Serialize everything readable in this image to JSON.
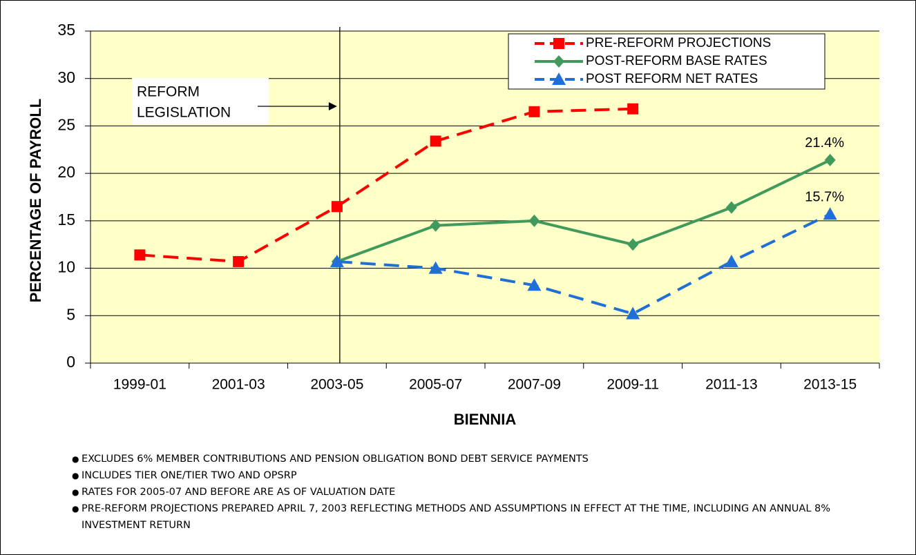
{
  "chart_data": {
    "type": "line",
    "ylabel": "PERCENTAGE OF PAYROLL",
    "xlabel": "BIENNIA",
    "categories": [
      "1999-01",
      "2001-03",
      "2003-05",
      "2005-07",
      "2007-09",
      "2009-11",
      "2011-13",
      "2013-15"
    ],
    "ylim": [
      0,
      35
    ],
    "yticks": [
      0,
      5,
      10,
      15,
      20,
      25,
      30,
      35
    ],
    "grid": true,
    "legend": "upper right",
    "marker_category": "2003-05",
    "annotation": [
      "REFORM",
      "LEGISLATION"
    ],
    "series": [
      {
        "name": "PRE-REFORM PROJECTIONS",
        "color": "#ff0000",
        "marker": "square",
        "dashed": true,
        "values": [
          11.4,
          10.7,
          16.5,
          23.4,
          26.5,
          26.8,
          null,
          null
        ]
      },
      {
        "name": "POST-REFORM BASE RATES",
        "color": "#3f9a5c",
        "marker": "diamond",
        "dashed": false,
        "values": [
          null,
          null,
          10.7,
          14.5,
          15.0,
          12.5,
          16.4,
          21.4
        ],
        "value_labels": [
          null,
          null,
          null,
          null,
          null,
          null,
          null,
          "21.4%"
        ]
      },
      {
        "name": "POST REFORM NET RATES",
        "color": "#1f6fd6",
        "marker": "triangle",
        "dashed": true,
        "values": [
          null,
          null,
          10.7,
          10.0,
          8.2,
          5.2,
          10.7,
          15.7
        ],
        "value_labels": [
          null,
          null,
          null,
          null,
          null,
          null,
          null,
          "15.7%"
        ]
      }
    ]
  },
  "notes": [
    "EXCLUDES 6% MEMBER CONTRIBUTIONS AND PENSION OBLIGATION BOND DEBT SERVICE PAYMENTS",
    "INCLUDES TIER ONE/TIER TWO AND OPSRP",
    "RATES FOR 2005-07 AND BEFORE ARE AS OF VALUATION DATE",
    "PRE-REFORM PROJECTIONS PREPARED APRIL 7, 2003 REFLECTING METHODS AND ASSUMPTIONS IN EFFECT AT THE TIME, INCLUDING AN ANNUAL 8% INVESTMENT RETURN"
  ]
}
